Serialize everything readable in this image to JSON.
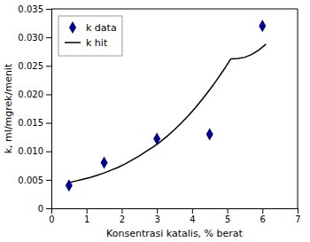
{
  "chart_data": {
    "type": "scatter",
    "xlabel": "Konsentrasi katalis, % berat",
    "ylabel": "k, ml/mgrek/menit",
    "xlim": [
      0,
      7
    ],
    "ylim": [
      0,
      0.035
    ],
    "xticks": [
      0,
      1,
      2,
      3,
      4,
      5,
      6,
      7
    ],
    "yticks": [
      0,
      0.005,
      {
        "value": 0.01,
        "label": "0.010"
      },
      0.015,
      {
        "value": 0.02,
        "label": "0.020"
      },
      0.025,
      {
        "value": 0.03,
        "label": "0.030"
      },
      0.035
    ],
    "grid": false,
    "legend": "upper left",
    "series": [
      {
        "name": "k data",
        "type": "scatter",
        "color": "#00008B",
        "marker": "diamond",
        "x": [
          0.5,
          1.5,
          3.0,
          4.5,
          6.0
        ],
        "values": [
          0.004,
          0.008,
          0.0122,
          0.013,
          0.032
        ]
      },
      {
        "name": "k hit",
        "type": "line",
        "color": "#000000",
        "line_style": "solid",
        "x": [
          0.5,
          0.7,
          0.9,
          1.1,
          1.3,
          1.5,
          1.7,
          1.9,
          2.1,
          2.3,
          2.5,
          2.7,
          2.9,
          3.1,
          3.3,
          3.5,
          3.7,
          3.9,
          4.1,
          4.3,
          4.5,
          4.7,
          4.9,
          5.1,
          5.3,
          5.5,
          5.7,
          5.9,
          6.1
        ],
        "values": [
          0.0045,
          0.0048,
          0.0051,
          0.0054,
          0.0058,
          0.0062,
          0.0067,
          0.0072,
          0.0078,
          0.0085,
          0.0092,
          0.01,
          0.0108,
          0.0117,
          0.0127,
          0.0138,
          0.015,
          0.0163,
          0.0177,
          0.0192,
          0.0208,
          0.0225,
          0.0243,
          0.0262,
          0.0263,
          0.0265,
          0.027,
          0.0278,
          0.0288
        ]
      }
    ]
  }
}
